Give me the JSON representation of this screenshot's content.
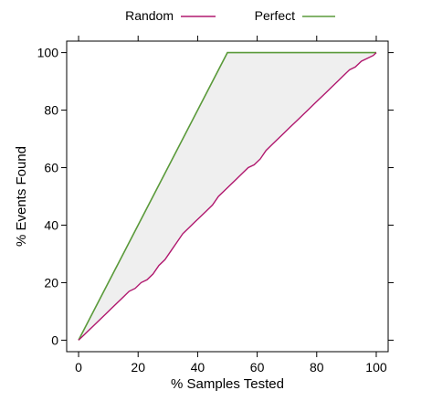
{
  "chart_data": {
    "type": "line",
    "title": "",
    "xlabel": "% Samples Tested",
    "ylabel": "% Events Found",
    "xlim": [
      -4,
      104
    ],
    "ylim": [
      -4,
      104
    ],
    "xticks": [
      0,
      20,
      40,
      60,
      80,
      100
    ],
    "yticks": [
      0,
      20,
      40,
      60,
      80,
      100
    ],
    "grid": false,
    "legend_position": "top",
    "shaded_region": "between Perfect and Random curves",
    "series": [
      {
        "name": "Random",
        "color": "#b0186e",
        "x": [
          0,
          1,
          2,
          3,
          5,
          7,
          9,
          11,
          13,
          15,
          17,
          19,
          21,
          23,
          25,
          27,
          29,
          31,
          33,
          35,
          37,
          39,
          41,
          43,
          45,
          47,
          49,
          51,
          53,
          55,
          57,
          59,
          61,
          63,
          65,
          67,
          69,
          71,
          73,
          75,
          77,
          79,
          81,
          83,
          85,
          87,
          89,
          91,
          93,
          95,
          97,
          99,
          100
        ],
        "y": [
          0,
          1,
          2,
          3,
          5,
          7,
          9,
          11,
          13,
          15,
          17,
          18,
          20,
          21,
          23,
          26,
          28,
          31,
          34,
          37,
          39,
          41,
          43,
          45,
          47,
          50,
          52,
          54,
          56,
          58,
          60,
          61,
          63,
          66,
          68,
          70,
          72,
          74,
          76,
          78,
          80,
          82,
          84,
          86,
          88,
          90,
          92,
          94,
          95,
          97,
          98,
          99,
          100
        ]
      },
      {
        "name": "Perfect",
        "color": "#5a9a3a",
        "x": [
          0,
          50,
          100
        ],
        "y": [
          0,
          100,
          100
        ]
      }
    ]
  },
  "colors": {
    "random": "#b0186e",
    "perfect": "#5a9a3a",
    "shade": "#efefef",
    "axis": "#000000"
  }
}
